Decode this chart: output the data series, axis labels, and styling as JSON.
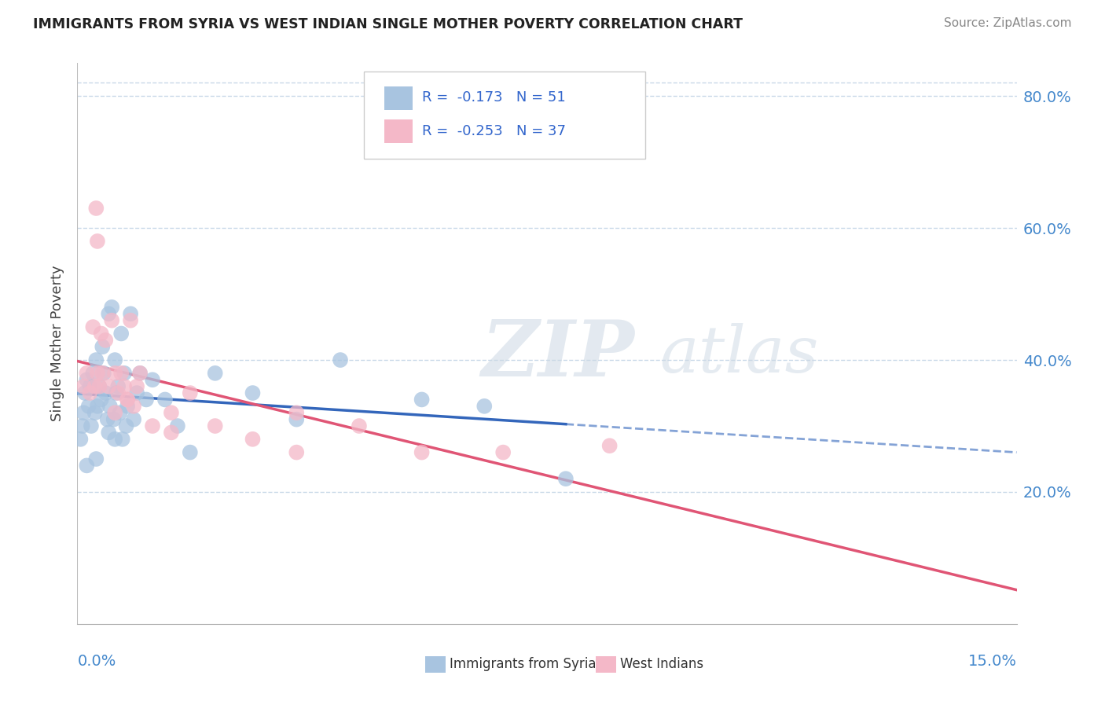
{
  "title": "IMMIGRANTS FROM SYRIA VS WEST INDIAN SINGLE MOTHER POVERTY CORRELATION CHART",
  "source": "Source: ZipAtlas.com",
  "ylabel": "Single Mother Poverty",
  "xlim": [
    0.0,
    15.0
  ],
  "ylim": [
    0.0,
    85.0
  ],
  "ytick_vals": [
    20.0,
    40.0,
    60.0,
    80.0
  ],
  "series1_color": "#a8c4e0",
  "series2_color": "#f4b8c8",
  "line1_color": "#3366bb",
  "line2_color": "#e05575",
  "line1_dash_color": "#7799cc",
  "legend_label1": "Immigrants from Syria",
  "legend_label2": "West Indians",
  "syria_x": [
    0.05,
    0.08,
    0.1,
    0.12,
    0.15,
    0.18,
    0.2,
    0.22,
    0.25,
    0.28,
    0.3,
    0.32,
    0.35,
    0.38,
    0.4,
    0.42,
    0.45,
    0.48,
    0.5,
    0.5,
    0.52,
    0.55,
    0.58,
    0.6,
    0.62,
    0.65,
    0.68,
    0.7,
    0.72,
    0.75,
    0.78,
    0.8,
    0.85,
    0.9,
    0.95,
    1.0,
    1.1,
    1.2,
    1.4,
    1.6,
    1.8,
    2.2,
    2.8,
    3.5,
    4.2,
    5.5,
    6.5,
    7.8,
    0.15,
    0.3,
    0.6
  ],
  "syria_y": [
    28,
    30,
    32,
    35,
    37,
    33,
    36,
    30,
    38,
    32,
    40,
    33,
    36,
    34,
    42,
    38,
    35,
    31,
    47,
    29,
    33,
    48,
    31,
    40,
    35,
    36,
    32,
    44,
    28,
    38,
    30,
    33,
    47,
    31,
    35,
    38,
    34,
    37,
    34,
    30,
    26,
    38,
    35,
    31,
    40,
    34,
    33,
    22,
    24,
    25,
    28
  ],
  "wi_x": [
    0.1,
    0.15,
    0.2,
    0.25,
    0.3,
    0.32,
    0.35,
    0.38,
    0.4,
    0.45,
    0.5,
    0.55,
    0.6,
    0.65,
    0.7,
    0.75,
    0.8,
    0.85,
    0.9,
    0.95,
    1.0,
    1.2,
    1.5,
    1.8,
    2.2,
    2.8,
    3.5,
    4.5,
    5.5,
    6.8,
    8.5,
    0.28,
    0.32,
    0.6,
    0.8,
    1.5,
    3.5
  ],
  "wi_y": [
    36,
    38,
    35,
    45,
    63,
    58,
    36,
    44,
    38,
    43,
    36,
    46,
    38,
    35,
    38,
    36,
    34,
    46,
    33,
    36,
    38,
    30,
    32,
    35,
    30,
    28,
    32,
    30,
    26,
    26,
    27,
    36,
    38,
    32,
    34,
    29,
    26
  ],
  "syria_line_xmax": 7.8,
  "wi_line_xmax": 15.0
}
